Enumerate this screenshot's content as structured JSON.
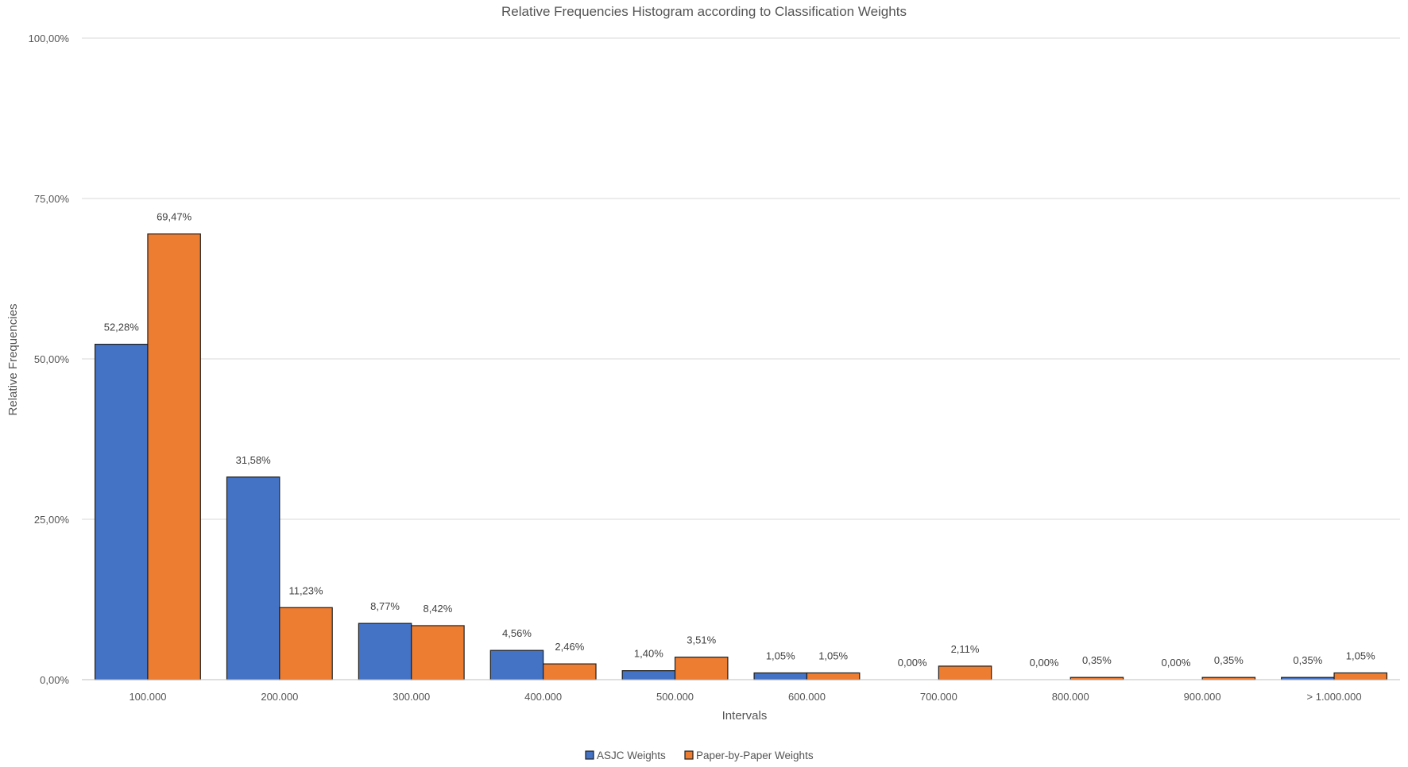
{
  "chart_data": {
    "type": "bar",
    "title": "Relative Frequencies Histogram according to Classification Weights",
    "xlabel": "Intervals",
    "ylabel": "Relative Frequencies",
    "categories": [
      "100.000",
      "200.000",
      "300.000",
      "400.000",
      "500.000",
      "600.000",
      "700.000",
      "800.000",
      "900.000",
      "> 1.000.000"
    ],
    "series": [
      {
        "name": "ASJC Weights",
        "color": "#4472c4",
        "values": [
          52.28,
          31.58,
          8.77,
          4.56,
          1.4,
          1.05,
          0.0,
          0.0,
          0.0,
          0.35
        ],
        "labels": [
          "52,28%",
          "31,58%",
          "8,77%",
          "4,56%",
          "1,40%",
          "1,05%",
          "0,00%",
          "0,00%",
          "0,00%",
          "0,35%"
        ]
      },
      {
        "name": "Paper-by-Paper Weights",
        "color": "#ed7d31",
        "values": [
          69.47,
          11.23,
          8.42,
          2.46,
          3.51,
          1.05,
          2.11,
          0.35,
          0.35,
          1.05
        ],
        "labels": [
          "69,47%",
          "11,23%",
          "8,42%",
          "2,46%",
          "3,51%",
          "1,05%",
          "2,11%",
          "0,35%",
          "0,35%",
          "1,05%"
        ]
      }
    ],
    "ylim": [
      0,
      100
    ],
    "yticks": [
      0,
      25,
      50,
      75,
      100
    ],
    "ytick_labels": [
      "0,00%",
      "25,00%",
      "50,00%",
      "75,00%",
      "100,00%"
    ],
    "grid": true,
    "legend_position": "bottom-center"
  }
}
